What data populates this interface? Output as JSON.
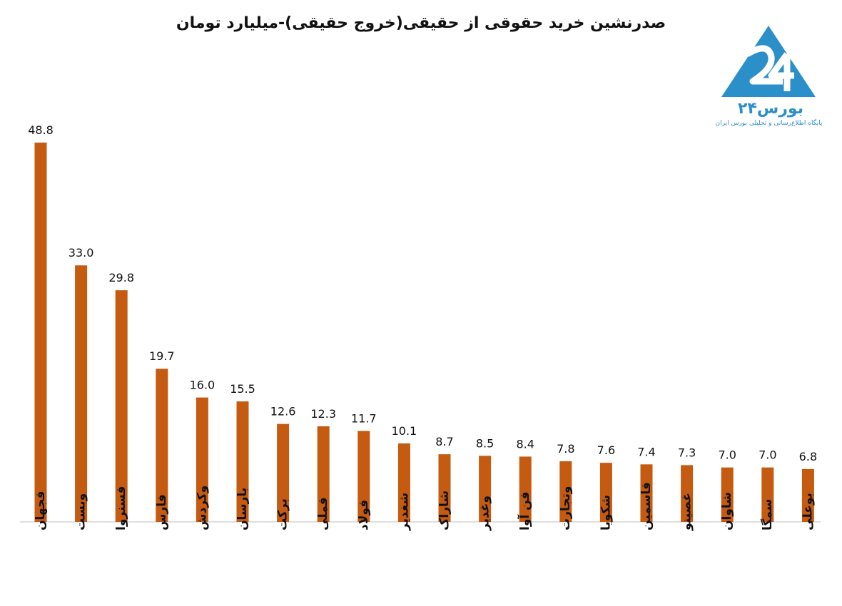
{
  "chart_data": {
    "type": "bar",
    "title": "صدرنشین خرید حقوقی از حقیقی(خروج حقیقی)-میلیارد تومان",
    "categories": [
      "فجهان",
      "وبست",
      "فسنروا",
      "فارس",
      "وکردش",
      "بارسان",
      "برکت",
      "فملی",
      "فولاد",
      "شغدیر",
      "شاراک",
      "وغدیر",
      "فن آوا",
      "وتجارت",
      "شکویا",
      "فاسمین",
      "غصینو",
      "شاوان",
      "سمگا",
      "بوعلی"
    ],
    "values": [
      48.8,
      33.0,
      29.8,
      19.7,
      16.0,
      15.5,
      12.6,
      12.3,
      11.7,
      10.1,
      8.7,
      8.5,
      8.4,
      7.8,
      7.6,
      7.4,
      7.3,
      7.0,
      7.0,
      6.8
    ],
    "value_labels": [
      "48.8",
      "33.0",
      "29.8",
      "19.7",
      "16.0",
      "15.5",
      "12.6",
      "12.3",
      "11.7",
      "10.1",
      "8.7",
      "8.5",
      "8.4",
      "7.8",
      "7.6",
      "7.4",
      "7.3",
      "7.0",
      "7.0",
      "6.8"
    ],
    "ylim": [
      0,
      50
    ],
    "grid": false,
    "bar_color": "#c55a11"
  },
  "logo": {
    "name": "بورس۲۴",
    "tagline": "پایگاه اطلاع‌رسانی و تحلیلی بورس ایران",
    "color": "#2b8fc9"
  }
}
